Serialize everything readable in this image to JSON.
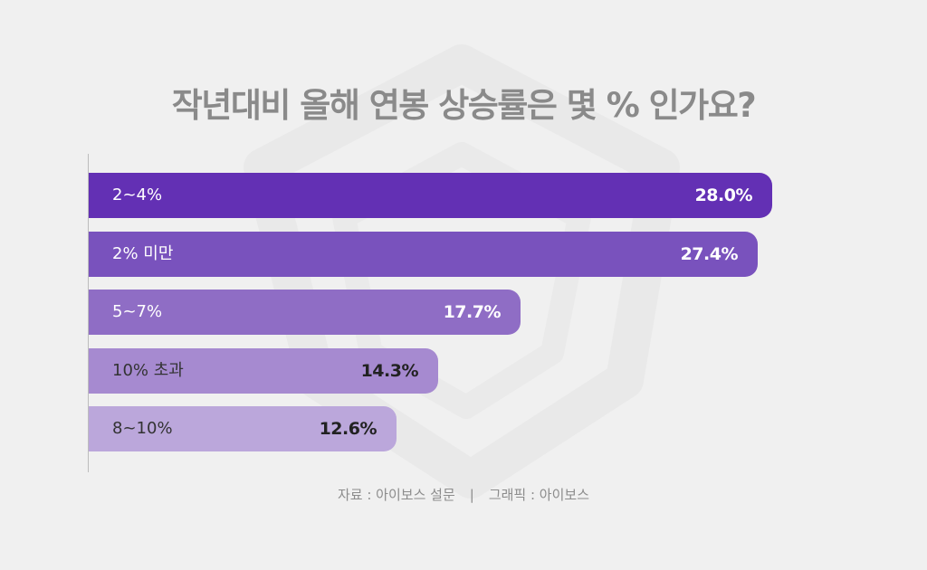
{
  "title": "작년대비 올해  연봉 상승률은 몇 % 인가요?",
  "source": {
    "survey": "자료 : 아이보스 설문",
    "separator": "|",
    "graphic": "그래픽 : 아이보스"
  },
  "colors": {
    "background": "#f0f0f0",
    "bars": [
      "#6330b4",
      "#7952bd",
      "#8f6dc5",
      "#a68ad0",
      "#bba7db"
    ]
  },
  "chart_data": {
    "type": "bar",
    "orientation": "horizontal",
    "title": "작년대비 올해  연봉 상승률은 몇 % 인가요?",
    "xlabel": "",
    "ylabel": "",
    "xlim": [
      0,
      28.0
    ],
    "grid": false,
    "legend": "none",
    "categories": [
      "2~4%",
      "2% 미만",
      "5~7%",
      "10% 초과",
      "8~10%"
    ],
    "values": [
      28.0,
      27.4,
      17.7,
      14.3,
      12.6
    ],
    "value_labels": [
      "28.0%",
      "27.4%",
      "17.7%",
      "14.3%",
      "12.6%"
    ]
  }
}
